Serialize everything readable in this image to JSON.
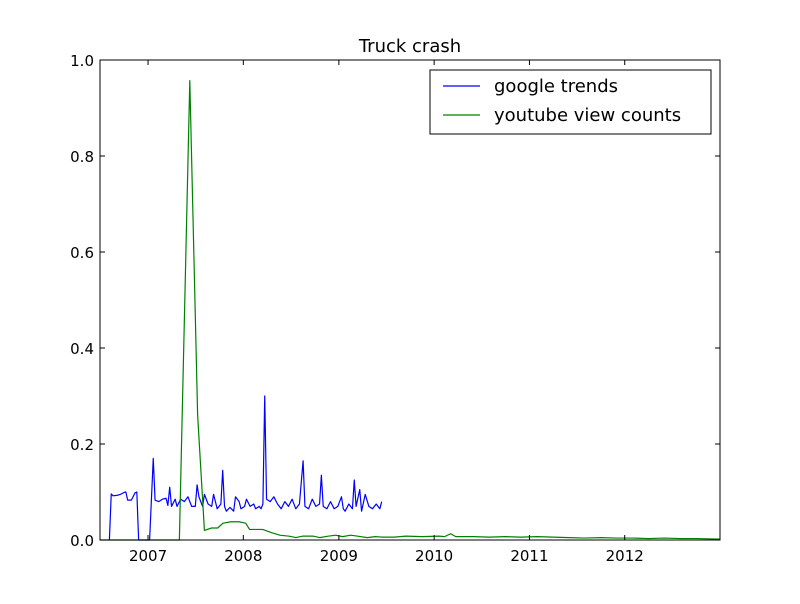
{
  "chart_data": {
    "type": "line",
    "title": "Truck crash",
    "xlabel": "",
    "ylabel": "",
    "xlim": [
      "2006-07-01",
      "2012-12-31"
    ],
    "ylim": [
      0.0,
      1.0
    ],
    "x_ticks": [
      {
        "date": "2007-01-01",
        "label": "2007"
      },
      {
        "date": "2008-01-01",
        "label": "2008"
      },
      {
        "date": "2009-01-01",
        "label": "2009"
      },
      {
        "date": "2010-01-01",
        "label": "2010"
      },
      {
        "date": "2011-01-01",
        "label": "2011"
      },
      {
        "date": "2012-01-01",
        "label": "2012"
      }
    ],
    "y_ticks": [
      {
        "value": 0.0,
        "label": "0.0"
      },
      {
        "value": 0.2,
        "label": "0.2"
      },
      {
        "value": 0.4,
        "label": "0.4"
      },
      {
        "value": 0.6,
        "label": "0.6"
      },
      {
        "value": 0.8,
        "label": "0.8"
      },
      {
        "value": 1.0,
        "label": "1.0"
      }
    ],
    "grid": false,
    "legend_position": "top-right",
    "series": [
      {
        "name": "google trends",
        "color": "#0000ff",
        "points": [
          [
            "2006-08-06",
            0.0
          ],
          [
            "2006-08-13",
            0.096
          ],
          [
            "2006-08-20",
            0.092
          ],
          [
            "2006-09-03",
            0.093
          ],
          [
            "2006-09-17",
            0.095
          ],
          [
            "2006-10-01",
            0.099
          ],
          [
            "2006-10-08",
            0.1
          ],
          [
            "2006-10-15",
            0.083
          ],
          [
            "2006-10-29",
            0.083
          ],
          [
            "2006-11-12",
            0.098
          ],
          [
            "2006-11-19",
            0.1
          ],
          [
            "2006-11-26",
            0.0
          ],
          [
            "2006-12-31",
            0.0
          ],
          [
            "2007-01-07",
            0.0
          ],
          [
            "2007-01-21",
            0.17
          ],
          [
            "2007-01-28",
            0.083
          ],
          [
            "2007-02-11",
            0.08
          ],
          [
            "2007-02-25",
            0.085
          ],
          [
            "2007-03-11",
            0.087
          ],
          [
            "2007-03-18",
            0.072
          ],
          [
            "2007-03-25",
            0.11
          ],
          [
            "2007-04-01",
            0.07
          ],
          [
            "2007-04-15",
            0.085
          ],
          [
            "2007-04-22",
            0.07
          ],
          [
            "2007-05-06",
            0.085
          ],
          [
            "2007-05-20",
            0.08
          ],
          [
            "2007-06-03",
            0.09
          ],
          [
            "2007-06-17",
            0.07
          ],
          [
            "2007-07-01",
            0.07
          ],
          [
            "2007-07-08",
            0.115
          ],
          [
            "2007-07-15",
            0.09
          ],
          [
            "2007-07-29",
            0.07
          ],
          [
            "2007-08-05",
            0.095
          ],
          [
            "2007-08-19",
            0.075
          ],
          [
            "2007-09-02",
            0.07
          ],
          [
            "2007-09-09",
            0.095
          ],
          [
            "2007-09-23",
            0.065
          ],
          [
            "2007-10-07",
            0.075
          ],
          [
            "2007-10-14",
            0.145
          ],
          [
            "2007-10-21",
            0.07
          ],
          [
            "2007-10-28",
            0.06
          ],
          [
            "2007-11-11",
            0.068
          ],
          [
            "2007-11-25",
            0.06
          ],
          [
            "2007-12-02",
            0.09
          ],
          [
            "2007-12-16",
            0.08
          ],
          [
            "2007-12-23",
            0.065
          ],
          [
            "2008-01-06",
            0.07
          ],
          [
            "2008-01-13",
            0.085
          ],
          [
            "2008-01-27",
            0.07
          ],
          [
            "2008-02-10",
            0.075
          ],
          [
            "2008-02-17",
            0.065
          ],
          [
            "2008-03-02",
            0.07
          ],
          [
            "2008-03-09",
            0.065
          ],
          [
            "2008-03-16",
            0.075
          ],
          [
            "2008-03-23",
            0.3
          ],
          [
            "2008-03-30",
            0.085
          ],
          [
            "2008-04-13",
            0.08
          ],
          [
            "2008-04-27",
            0.09
          ],
          [
            "2008-05-11",
            0.075
          ],
          [
            "2008-05-25",
            0.065
          ],
          [
            "2008-06-08",
            0.08
          ],
          [
            "2008-06-22",
            0.07
          ],
          [
            "2008-07-06",
            0.085
          ],
          [
            "2008-07-20",
            0.065
          ],
          [
            "2008-08-03",
            0.075
          ],
          [
            "2008-08-17",
            0.165
          ],
          [
            "2008-08-24",
            0.07
          ],
          [
            "2008-09-07",
            0.065
          ],
          [
            "2008-09-21",
            0.085
          ],
          [
            "2008-10-05",
            0.07
          ],
          [
            "2008-10-19",
            0.075
          ],
          [
            "2008-10-26",
            0.135
          ],
          [
            "2008-11-02",
            0.07
          ],
          [
            "2008-11-16",
            0.065
          ],
          [
            "2008-11-30",
            0.08
          ],
          [
            "2008-12-14",
            0.065
          ],
          [
            "2008-12-28",
            0.07
          ],
          [
            "2009-01-11",
            0.09
          ],
          [
            "2009-01-18",
            0.065
          ],
          [
            "2009-01-25",
            0.06
          ],
          [
            "2009-02-08",
            0.075
          ],
          [
            "2009-02-22",
            0.065
          ],
          [
            "2009-03-01",
            0.125
          ],
          [
            "2009-03-08",
            0.07
          ],
          [
            "2009-03-22",
            0.105
          ],
          [
            "2009-03-29",
            0.06
          ],
          [
            "2009-04-12",
            0.095
          ],
          [
            "2009-04-26",
            0.07
          ],
          [
            "2009-05-10",
            0.065
          ],
          [
            "2009-05-24",
            0.075
          ],
          [
            "2009-06-07",
            0.065
          ],
          [
            "2009-06-14",
            0.08
          ]
        ]
      },
      {
        "name": "youtube view counts",
        "color": "#008000",
        "points": [
          [
            "2006-07-01",
            0.0
          ],
          [
            "2007-05-01",
            0.0
          ],
          [
            "2007-06-10",
            0.957
          ],
          [
            "2007-07-10",
            0.26
          ],
          [
            "2007-08-05",
            0.02
          ],
          [
            "2007-09-01",
            0.025
          ],
          [
            "2007-09-25",
            0.025
          ],
          [
            "2007-10-15",
            0.035
          ],
          [
            "2007-11-15",
            0.038
          ],
          [
            "2007-12-15",
            0.038
          ],
          [
            "2008-01-10",
            0.035
          ],
          [
            "2008-01-25",
            0.022
          ],
          [
            "2008-03-15",
            0.022
          ],
          [
            "2008-04-20",
            0.015
          ],
          [
            "2008-05-20",
            0.01
          ],
          [
            "2008-06-25",
            0.008
          ],
          [
            "2008-07-20",
            0.005
          ],
          [
            "2008-08-15",
            0.008
          ],
          [
            "2008-09-25",
            0.008
          ],
          [
            "2008-10-20",
            0.005
          ],
          [
            "2008-11-20",
            0.008
          ],
          [
            "2008-12-20",
            0.01
          ],
          [
            "2009-01-15",
            0.007
          ],
          [
            "2009-02-15",
            0.01
          ],
          [
            "2009-03-15",
            0.008
          ],
          [
            "2009-04-20",
            0.005
          ],
          [
            "2009-05-20",
            0.007
          ],
          [
            "2009-06-20",
            0.006
          ],
          [
            "2009-08-01",
            0.006
          ],
          [
            "2009-09-15",
            0.008
          ],
          [
            "2009-11-15",
            0.007
          ],
          [
            "2010-01-20",
            0.008
          ],
          [
            "2010-02-10",
            0.007
          ],
          [
            "2010-03-05",
            0.013
          ],
          [
            "2010-03-25",
            0.007
          ],
          [
            "2010-06-01",
            0.007
          ],
          [
            "2010-08-01",
            0.006
          ],
          [
            "2010-10-01",
            0.007
          ],
          [
            "2010-12-01",
            0.006
          ],
          [
            "2011-02-01",
            0.007
          ],
          [
            "2011-04-01",
            0.006
          ],
          [
            "2011-06-01",
            0.005
          ],
          [
            "2011-08-01",
            0.004
          ],
          [
            "2011-10-01",
            0.005
          ],
          [
            "2011-12-01",
            0.004
          ],
          [
            "2012-02-01",
            0.004
          ],
          [
            "2012-04-01",
            0.003
          ],
          [
            "2012-06-01",
            0.004
          ],
          [
            "2012-08-01",
            0.003
          ],
          [
            "2012-10-01",
            0.003
          ],
          [
            "2012-12-31",
            0.002
          ]
        ]
      }
    ]
  }
}
